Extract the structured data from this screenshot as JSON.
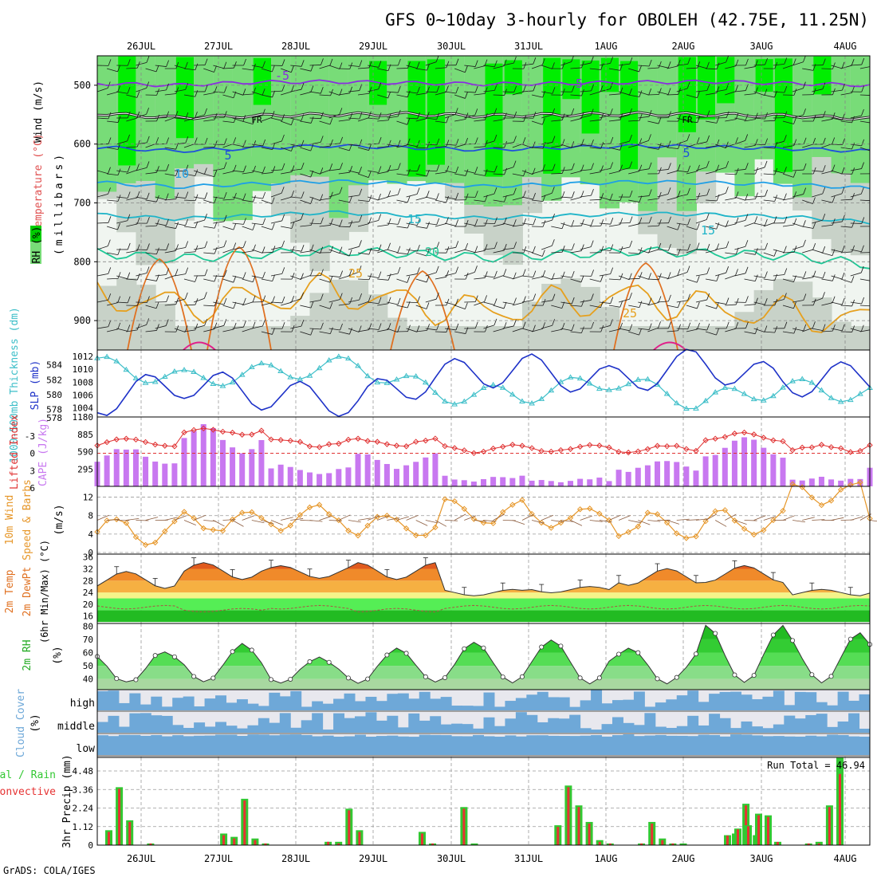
{
  "title": "GFS 0~10day 3-hourly for OBOLEH (42.75E, 11.25N)",
  "credit": "GrADS: COLA/IGES",
  "date_labels": [
    "26JUL",
    "27JUL",
    "28JUL",
    "29JUL",
    "30JUL",
    "31JUL",
    "1AUG",
    "2AUG",
    "3AUG",
    "4AUG"
  ],
  "colors": {
    "rh_light": "#c8d2c8",
    "rh_mid": "#78dc78",
    "rh_dark": "#00ee00",
    "rh_bg": "#f0f5f0",
    "temp_m5": "#8a2be2",
    "temp_fr": "#222222",
    "temp_5": "#1e50dc",
    "temp_10": "#1e9fe6",
    "temp_15": "#1eb4c8",
    "temp_20": "#1ec896",
    "temp_25": "#e6a01e",
    "thickness": "#3cbec8",
    "slp": "#1e32c8",
    "lifted": "#e03232",
    "cape": "#c878f0",
    "wind_speed": "#e69628",
    "barb": "#8a5a3c",
    "cloud": "#6ea8d8",
    "precip_total": "#32c832",
    "precip_conv": "#e63232"
  },
  "upper_panel": {
    "ylabel_wind": "Wind (m/s)",
    "ylabel_temp": "Temperature (°C)",
    "ylabel_rh": "RH (%)",
    "ylabel_units": "(millibars)",
    "contour_labels": [
      "-5",
      "-5",
      "FR",
      "FR",
      "5",
      "5",
      "10",
      "15",
      "15",
      "20",
      "25",
      "25"
    ]
  },
  "panel_labels": {
    "thickness": "1000-500mb Thickness (dm)",
    "slp": "SLP (mb)",
    "lifted": "Lifted Index",
    "cape": "CAPE (J/kg)",
    "wind_title": "10m Wind",
    "wind_mid": "Speed & Barbs",
    "wind_units": "(m/s)",
    "temp_title": "2m Temp",
    "temp_mid": "2m DewPt",
    "temp_sub": "(6hr Min/Max) (°C)",
    "rh_title": "2m RH",
    "rh_units": "(%)",
    "cloud_title": "Cloud Cover",
    "cloud_units": "(%)",
    "cloud_levels": [
      "high",
      "middle",
      "low"
    ],
    "precip_title": "tal / Rain",
    "precip_conv": "Convective",
    "precip_units": "3hr Precip (mm)",
    "run_total": "Run Total = 46.94"
  },
  "chart_data": [
    {
      "type": "heatmap",
      "title": "GFS 0~10day 3-hourly for OBOLEH (42.75E, 11.25N)",
      "ylabel": "(millibars)",
      "y_ticks": [
        500,
        600,
        700,
        800,
        900
      ],
      "ylim": [
        450,
        950
      ],
      "x_ticks": [
        "26JUL",
        "27JUL",
        "28JUL",
        "29JUL",
        "30JUL",
        "31JUL",
        "1AUG",
        "2AUG",
        "3AUG",
        "4AUG"
      ],
      "temperature_contours": [
        {
          "label": "-5",
          "pressure": [
            497,
            500,
            495,
            494,
            496,
            498,
            497,
            495,
            494,
            497,
            500
          ]
        },
        {
          "label": "FR",
          "pressure": [
            548,
            555,
            552,
            550,
            549,
            552,
            550,
            549,
            550,
            552,
            557
          ]
        },
        {
          "label": "5",
          "pressure": [
            605,
            612,
            607,
            603,
            606,
            610,
            606,
            603,
            605,
            608,
            612
          ]
        },
        {
          "label": "10",
          "pressure": [
            665,
            673,
            668,
            663,
            667,
            672,
            668,
            664,
            666,
            669,
            675
          ]
        },
        {
          "label": "15",
          "pressure": [
            720,
            727,
            722,
            716,
            721,
            726,
            722,
            718,
            720,
            724,
            733
          ]
        },
        {
          "label": "20",
          "pressure": [
            785,
            795,
            788,
            781,
            786,
            793,
            788,
            782,
            786,
            790,
            805
          ]
        },
        {
          "label": "25",
          "pressure": [
            855,
            875,
            865,
            850,
            870,
            885,
            870,
            860,
            880,
            890,
            900
          ]
        }
      ]
    },
    {
      "type": "line",
      "x": [
        "26JUL",
        "27JUL",
        "28JUL",
        "29JUL",
        "30JUL",
        "31JUL",
        "1AUG",
        "2AUG",
        "3AUG",
        "4AUG"
      ],
      "series": [
        {
          "name": "1000-500mb Thickness (dm)",
          "axis": "left",
          "values": [
            584,
            582,
            583,
            584,
            580,
            580,
            582,
            579,
            581,
            580
          ]
        },
        {
          "name": "SLP (mb)",
          "axis": "right",
          "values": [
            1005,
            1008,
            1006,
            1005,
            1009,
            1010,
            1008,
            1011,
            1008,
            1009
          ]
        }
      ],
      "yticks_left": [
        578,
        580,
        582,
        584
      ],
      "yticks_right": [
        1004,
        1006,
        1008,
        1010,
        1012
      ]
    },
    {
      "type": "bar",
      "categories": [
        "26JUL",
        "27JUL",
        "28JUL",
        "29JUL",
        "30JUL",
        "31JUL",
        "1AUG",
        "2AUG",
        "3AUG",
        "4AUG"
      ],
      "series": [
        {
          "name": "CAPE (J/kg)",
          "values": [
            620,
            1010,
            310,
            520,
            140,
            100,
            430,
            820,
            120,
            500
          ]
        },
        {
          "name": "Lifted Index",
          "values": [
            -2,
            -4,
            -2,
            -2,
            -1,
            -1,
            -1,
            -3,
            -1,
            -2
          ]
        }
      ],
      "yticks_left": [
        6,
        3,
        0,
        -3
      ],
      "yticks_right": [
        295,
        590,
        885,
        1180
      ]
    },
    {
      "type": "line",
      "x": [
        "26JUL",
        "27JUL",
        "28JUL",
        "29JUL",
        "30JUL",
        "31JUL",
        "1AUG",
        "2AUG",
        "3AUG",
        "4AUG"
      ],
      "series": [
        {
          "name": "10m Wind Speed",
          "values": [
            4,
            6,
            7,
            5,
            8,
            7,
            5,
            6,
            12,
            6
          ]
        }
      ],
      "yticks": [
        0,
        4,
        8,
        12
      ],
      "ylim": [
        0,
        14
      ]
    },
    {
      "type": "area",
      "x": [
        "26JUL",
        "27JUL",
        "28JUL",
        "29JUL",
        "30JUL",
        "31JUL",
        "1AUG",
        "2AUG",
        "3AUG",
        "4AUG"
      ],
      "series": [
        {
          "name": "2m Temp",
          "values": [
            31,
            34,
            33,
            34,
            25,
            26,
            32,
            33,
            25,
            25
          ]
        },
        {
          "name": "2m DewPt",
          "values": [
            19,
            18,
            19,
            18,
            19,
            19,
            19,
            19,
            19,
            19
          ]
        }
      ],
      "yticks": [
        16,
        20,
        24,
        28,
        32,
        36
      ],
      "ylim": [
        14,
        37
      ]
    },
    {
      "type": "area",
      "x": [
        "26JUL",
        "27JUL",
        "28JUL",
        "29JUL",
        "30JUL",
        "31JUL",
        "1AUG",
        "2AUG",
        "3AUG",
        "4AUG"
      ],
      "series": [
        {
          "name": "2m RH",
          "values": [
            60,
            65,
            55,
            62,
            66,
            68,
            62,
            79,
            74,
            71
          ]
        }
      ],
      "yticks": [
        40,
        50,
        60,
        70,
        80
      ],
      "ylim": [
        32,
        82
      ]
    },
    {
      "type": "area",
      "x": [
        "26JUL",
        "27JUL",
        "28JUL",
        "29JUL",
        "30JUL",
        "31JUL",
        "1AUG",
        "2AUG",
        "3AUG",
        "4AUG"
      ],
      "series": [
        {
          "name": "high",
          "values": [
            40,
            60,
            50,
            45,
            70,
            60,
            75,
            70,
            40,
            50
          ]
        },
        {
          "name": "middle",
          "values": [
            60,
            55,
            70,
            60,
            50,
            45,
            60,
            65,
            55,
            60
          ]
        },
        {
          "name": "low",
          "values": [
            100,
            100,
            100,
            100,
            100,
            100,
            100,
            100,
            100,
            100
          ]
        }
      ]
    },
    {
      "type": "bar",
      "categories": [
        "26JUL",
        "27JUL",
        "28JUL",
        "29JUL",
        "30JUL",
        "31JUL",
        "1AUG",
        "2AUG",
        "3AUG",
        "4AUG"
      ],
      "series": [
        {
          "name": "Total / Rain",
          "values": [
            3.6,
            2.8,
            2.2,
            2.3,
            3.6,
            1.4,
            2.6,
            5.3,
            1.8,
            0.0
          ]
        },
        {
          "name": "Convective",
          "values": [
            3.5,
            2.7,
            2.1,
            2.2,
            3.5,
            1.3,
            2.5,
            4.3,
            1.7,
            0.0
          ]
        }
      ],
      "yticks": [
        0,
        1.12,
        2.24,
        3.36,
        4.48
      ],
      "ylim": [
        0,
        5.3
      ],
      "annotation": "Run Total = 46.94"
    }
  ]
}
